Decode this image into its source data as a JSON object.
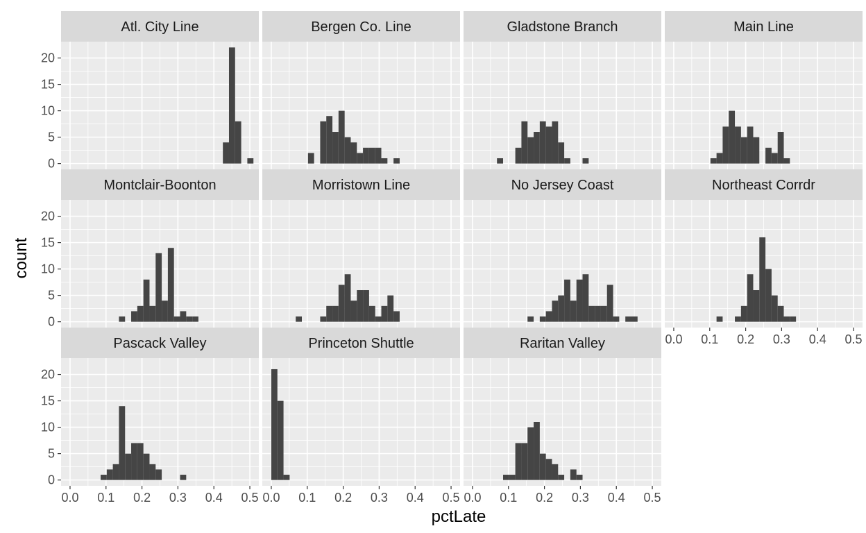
{
  "chart_data": {
    "type": "bar",
    "subtype": "faceted-histogram",
    "xlabel": "pctLate",
    "ylabel": "count",
    "xlim": [
      -0.025,
      0.525
    ],
    "ylim": [
      -1.1,
      23.1
    ],
    "x_ticks": [
      "0.0",
      "0.1",
      "0.2",
      "0.3",
      "0.4",
      "0.5"
    ],
    "y_ticks": [
      "0",
      "5",
      "10",
      "15",
      "20"
    ],
    "bin_width": 0.017,
    "layout": "4 columns x 3 rows",
    "colors": {
      "bar": "#454545",
      "panel_background": "#ebebeb",
      "strip_background": "#d9d9d9",
      "grid": "#ffffff"
    },
    "facets": [
      {
        "name": "Atl. City Line",
        "bins": [
          [
            0.425,
            4
          ],
          [
            0.442,
            22
          ],
          [
            0.459,
            8
          ],
          [
            0.493,
            1
          ]
        ]
      },
      {
        "name": "Bergen Co. Line",
        "bins": [
          [
            0.102,
            2
          ],
          [
            0.136,
            8
          ],
          [
            0.153,
            9
          ],
          [
            0.17,
            6
          ],
          [
            0.187,
            10
          ],
          [
            0.204,
            5
          ],
          [
            0.221,
            4
          ],
          [
            0.238,
            2
          ],
          [
            0.255,
            3
          ],
          [
            0.272,
            3
          ],
          [
            0.289,
            3
          ],
          [
            0.306,
            1
          ],
          [
            0.34,
            1
          ]
        ]
      },
      {
        "name": "Gladstone Branch",
        "bins": [
          [
            0.068,
            1
          ],
          [
            0.119,
            3
          ],
          [
            0.136,
            8
          ],
          [
            0.153,
            5
          ],
          [
            0.17,
            6
          ],
          [
            0.187,
            8
          ],
          [
            0.204,
            7
          ],
          [
            0.221,
            8
          ],
          [
            0.238,
            4
          ],
          [
            0.255,
            1
          ],
          [
            0.306,
            1
          ]
        ]
      },
      {
        "name": "Main Line",
        "bins": [
          [
            0.102,
            1
          ],
          [
            0.119,
            2
          ],
          [
            0.136,
            7
          ],
          [
            0.153,
            10
          ],
          [
            0.17,
            7
          ],
          [
            0.187,
            5
          ],
          [
            0.204,
            7
          ],
          [
            0.221,
            5
          ],
          [
            0.255,
            3
          ],
          [
            0.272,
            2
          ],
          [
            0.289,
            6
          ],
          [
            0.306,
            1
          ]
        ]
      },
      {
        "name": "Montclair-Boonton",
        "bins": [
          [
            0.136,
            1
          ],
          [
            0.17,
            2
          ],
          [
            0.187,
            3
          ],
          [
            0.204,
            8
          ],
          [
            0.221,
            3
          ],
          [
            0.238,
            13
          ],
          [
            0.255,
            4
          ],
          [
            0.272,
            14
          ],
          [
            0.289,
            1
          ],
          [
            0.306,
            2
          ],
          [
            0.323,
            1
          ],
          [
            0.34,
            1
          ]
        ]
      },
      {
        "name": "Morristown Line",
        "bins": [
          [
            0.068,
            1
          ],
          [
            0.136,
            1
          ],
          [
            0.153,
            3
          ],
          [
            0.17,
            3
          ],
          [
            0.187,
            7
          ],
          [
            0.204,
            9
          ],
          [
            0.221,
            4
          ],
          [
            0.238,
            6
          ],
          [
            0.255,
            6
          ],
          [
            0.272,
            3
          ],
          [
            0.289,
            1
          ],
          [
            0.306,
            3
          ],
          [
            0.323,
            5
          ],
          [
            0.34,
            2
          ]
        ]
      },
      {
        "name": "No Jersey Coast",
        "bins": [
          [
            0.153,
            1
          ],
          [
            0.187,
            1
          ],
          [
            0.204,
            2
          ],
          [
            0.221,
            4
          ],
          [
            0.238,
            5
          ],
          [
            0.255,
            8
          ],
          [
            0.272,
            4
          ],
          [
            0.289,
            8
          ],
          [
            0.306,
            9
          ],
          [
            0.323,
            3
          ],
          [
            0.34,
            3
          ],
          [
            0.357,
            3
          ],
          [
            0.374,
            7
          ],
          [
            0.391,
            1
          ],
          [
            0.425,
            1
          ],
          [
            0.442,
            1
          ]
        ]
      },
      {
        "name": "Northeast Corrdr",
        "bins": [
          [
            0.119,
            1
          ],
          [
            0.17,
            1
          ],
          [
            0.187,
            3
          ],
          [
            0.204,
            9
          ],
          [
            0.221,
            6
          ],
          [
            0.238,
            16
          ],
          [
            0.255,
            10
          ],
          [
            0.272,
            5
          ],
          [
            0.289,
            3
          ],
          [
            0.306,
            1
          ],
          [
            0.323,
            1
          ]
        ]
      },
      {
        "name": "Pascack Valley",
        "bins": [
          [
            0.085,
            1
          ],
          [
            0.102,
            2
          ],
          [
            0.119,
            3
          ],
          [
            0.136,
            14
          ],
          [
            0.153,
            5
          ],
          [
            0.17,
            7
          ],
          [
            0.187,
            7
          ],
          [
            0.204,
            5
          ],
          [
            0.221,
            3
          ],
          [
            0.238,
            2
          ],
          [
            0.306,
            1
          ]
        ]
      },
      {
        "name": "Princeton Shuttle",
        "bins": [
          [
            0.0,
            21
          ],
          [
            0.017,
            15
          ],
          [
            0.034,
            1
          ]
        ]
      },
      {
        "name": "Raritan Valley",
        "bins": [
          [
            0.085,
            1
          ],
          [
            0.102,
            1
          ],
          [
            0.119,
            7
          ],
          [
            0.136,
            7
          ],
          [
            0.153,
            10
          ],
          [
            0.17,
            11
          ],
          [
            0.187,
            5
          ],
          [
            0.204,
            4
          ],
          [
            0.221,
            3
          ],
          [
            0.238,
            1
          ],
          [
            0.272,
            2
          ],
          [
            0.289,
            1
          ]
        ]
      }
    ]
  }
}
